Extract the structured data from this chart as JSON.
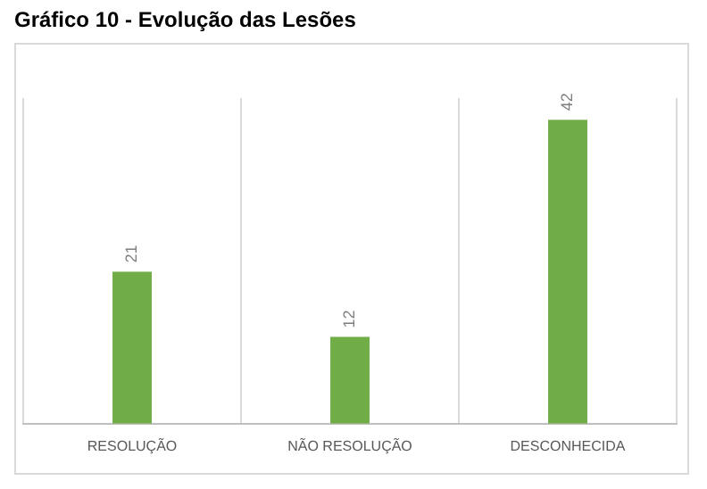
{
  "chart_data": {
    "type": "bar",
    "title": "Gráfico 10 - Evolução das Lesões",
    "categories": [
      "RESOLUÇÃO",
      "NÃO RESOLUÇÃO",
      "DESCONHECIDA"
    ],
    "values": [
      21,
      12,
      42
    ],
    "color": "#70ad47",
    "data_labels": true,
    "grid": "x",
    "legend": false
  }
}
